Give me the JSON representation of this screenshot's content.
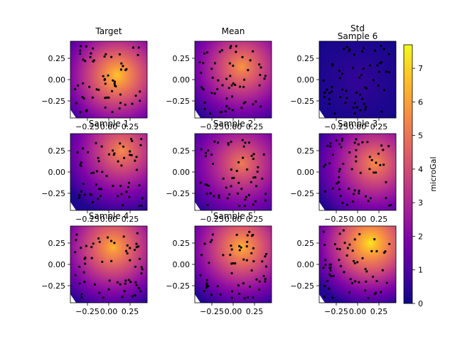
{
  "figure": {
    "colormap": "plasma",
    "colorbar": {
      "label": "microGal",
      "range": [
        0,
        7.7
      ],
      "ticks": [
        "0",
        "1",
        "2",
        "3",
        "4",
        "5",
        "6",
        "7"
      ]
    }
  },
  "chart_data": [
    {
      "type": "heatmap",
      "title": "Target",
      "xlim": [
        -0.45,
        0.45
      ],
      "ylim": [
        -0.45,
        0.45
      ],
      "xticks": [
        "−0.25",
        "0.00",
        "0.25"
      ],
      "yticks": [
        "0.25",
        "0.00",
        "−0.25"
      ],
      "peak": {
        "x": 0.1,
        "y": 0.05,
        "value": 6.8
      }
    },
    {
      "type": "heatmap",
      "title": "Mean",
      "xlim": [
        -0.45,
        0.45
      ],
      "ylim": [
        -0.45,
        0.45
      ],
      "xticks": [
        "−0.25",
        "0.00",
        "0.25"
      ],
      "yticks": [
        "0.25",
        "0.00",
        "−0.25"
      ],
      "peak": {
        "x": 0.1,
        "y": 0.15,
        "value": 5.8
      }
    },
    {
      "type": "heatmap",
      "title": "Std",
      "xlim": [
        -0.45,
        0.45
      ],
      "ylim": [
        -0.45,
        0.45
      ],
      "xticks": [
        "−0.25",
        "0.00",
        "0.25"
      ],
      "yticks": [
        "0.25",
        "0.00",
        "−0.25"
      ],
      "peak": {
        "x": 0.0,
        "y": 0.0,
        "value": 0.6
      }
    },
    {
      "type": "heatmap",
      "title": "Sample 6",
      "xlim": [
        -0.45,
        0.45
      ],
      "ylim": [
        -0.45,
        0.45
      ],
      "xticks": [
        "−0.25",
        "0.00",
        "0.25"
      ],
      "yticks": [
        "0.25",
        "0.00",
        "−0.25"
      ],
      "peak": {
        "x": 0.15,
        "y": 0.25,
        "value": 7.4
      }
    },
    {
      "type": "heatmap",
      "title": "Sample 1",
      "xlim": [
        -0.45,
        0.45
      ],
      "ylim": [
        -0.45,
        0.45
      ],
      "xticks": [
        "−0.25",
        "0.00",
        "0.25"
      ],
      "yticks": [
        "0.25",
        "0.00",
        "−0.25"
      ],
      "peak": {
        "x": 0.15,
        "y": 0.25,
        "value": 5.6
      }
    },
    {
      "type": "heatmap",
      "title": "Sample 2",
      "xlim": [
        -0.45,
        0.45
      ],
      "ylim": [
        -0.45,
        0.45
      ],
      "xticks": [
        "−0.25",
        "0.00",
        "0.25"
      ],
      "yticks": [
        "0.25",
        "0.00",
        "−0.25"
      ],
      "peak": {
        "x": 0.1,
        "y": 0.1,
        "value": 5.2
      }
    },
    {
      "type": "heatmap",
      "title": "Sample 3",
      "xlim": [
        -0.45,
        0.45
      ],
      "ylim": [
        -0.45,
        0.45
      ],
      "xticks": [
        "−0.25",
        "0.00",
        "0.25"
      ],
      "yticks": [
        "0.25",
        "0.00",
        "−0.25"
      ],
      "peak": {
        "x": 0.2,
        "y": 0.1,
        "value": 5.6
      }
    },
    {
      "type": "heatmap",
      "title": "Sample 4",
      "xlim": [
        -0.45,
        0.45
      ],
      "ylim": [
        -0.45,
        0.45
      ],
      "xticks": [
        "−0.25",
        "0.00",
        "0.25"
      ],
      "yticks": [
        "0.25",
        "0.00",
        "−0.25"
      ],
      "peak": {
        "x": 0.05,
        "y": 0.2,
        "value": 6.4
      }
    },
    {
      "type": "heatmap",
      "title": "Sample 5",
      "xlim": [
        -0.45,
        0.45
      ],
      "ylim": [
        -0.45,
        0.45
      ],
      "xticks": [
        "−0.25",
        "0.00",
        "0.25"
      ],
      "yticks": [
        "0.25",
        "0.00",
        "−0.25"
      ],
      "peak": {
        "x": 0.1,
        "y": 0.2,
        "value": 6.4
      }
    }
  ]
}
